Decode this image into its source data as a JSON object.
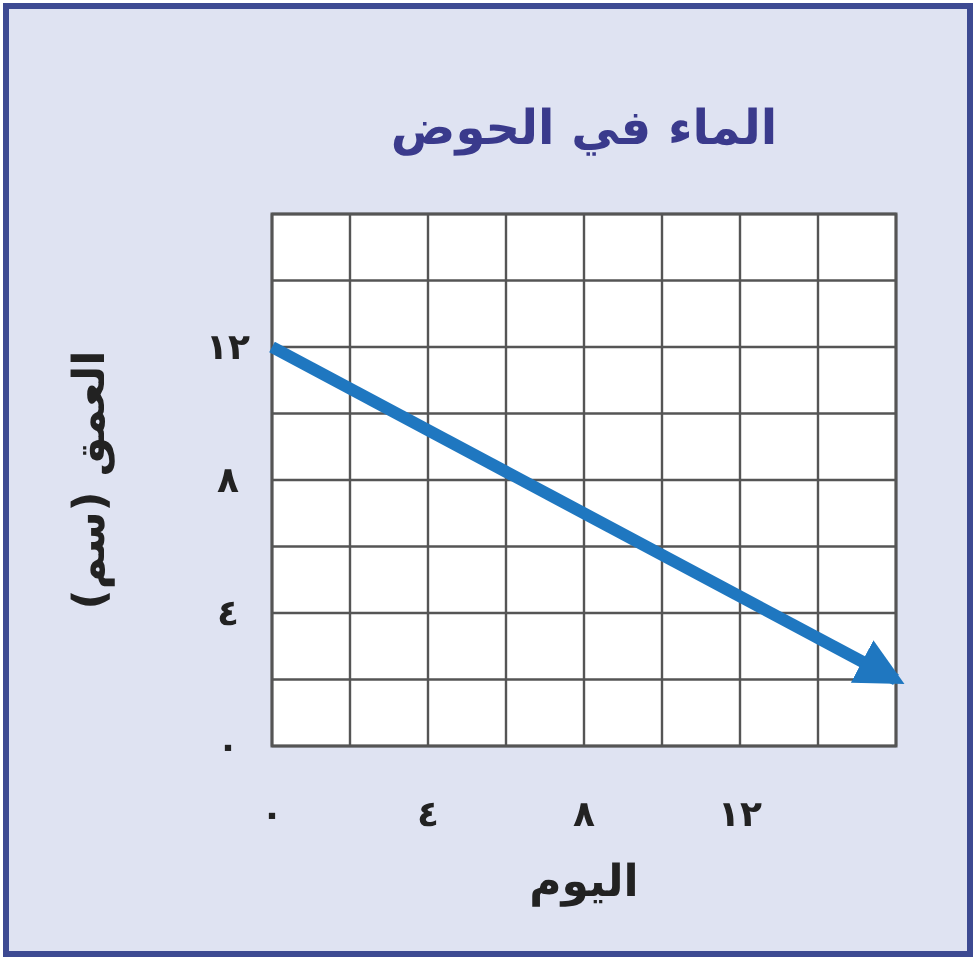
{
  "chart_data": {
    "type": "line",
    "title": "الماء في الحوض",
    "xlabel": "اليوم",
    "ylabel": "العمق (سم)",
    "x": [
      0,
      16
    ],
    "series": [
      {
        "color": "#1f77c0",
        "values": [
          12,
          2
        ]
      }
    ],
    "xlim": [
      0,
      16
    ],
    "ylim": [
      0,
      16
    ],
    "xticks": [
      {
        "value": 0,
        "label": "٠"
      },
      {
        "value": 2,
        "label": null
      },
      {
        "value": 4,
        "label": "٤"
      },
      {
        "value": 6,
        "label": null
      },
      {
        "value": 8,
        "label": "٨"
      },
      {
        "value": 10,
        "label": null
      },
      {
        "value": 12,
        "label": "١٢"
      },
      {
        "value": 14,
        "label": null
      },
      {
        "value": 16,
        "label": null
      }
    ],
    "yticks": [
      {
        "value": 0,
        "label": "٠"
      },
      {
        "value": 2,
        "label": null
      },
      {
        "value": 4,
        "label": "٤"
      },
      {
        "value": 6,
        "label": null
      },
      {
        "value": 8,
        "label": "٨"
      },
      {
        "value": 10,
        "label": null
      },
      {
        "value": 12,
        "label": "١٢"
      },
      {
        "value": 14,
        "label": null
      },
      {
        "value": 16,
        "label": null
      }
    ],
    "grid": true
  }
}
